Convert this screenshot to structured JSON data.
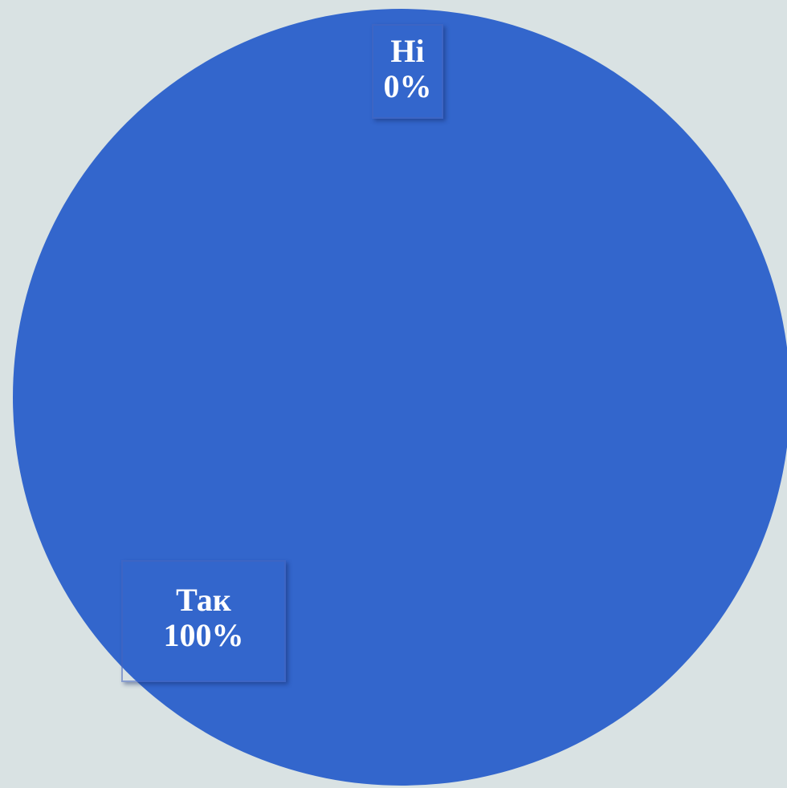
{
  "chart_data": {
    "type": "pie",
    "categories": [
      "Так",
      "Ні"
    ],
    "values": [
      100,
      0
    ],
    "labels": [
      {
        "category": "Так",
        "percent": "100%"
      },
      {
        "category": "Ні",
        "percent": "0%"
      }
    ],
    "colors": {
      "background": "#d9e2e3",
      "slice_tak": "#3366cc",
      "slice_ni": "#3366cc"
    },
    "legend": "none"
  }
}
